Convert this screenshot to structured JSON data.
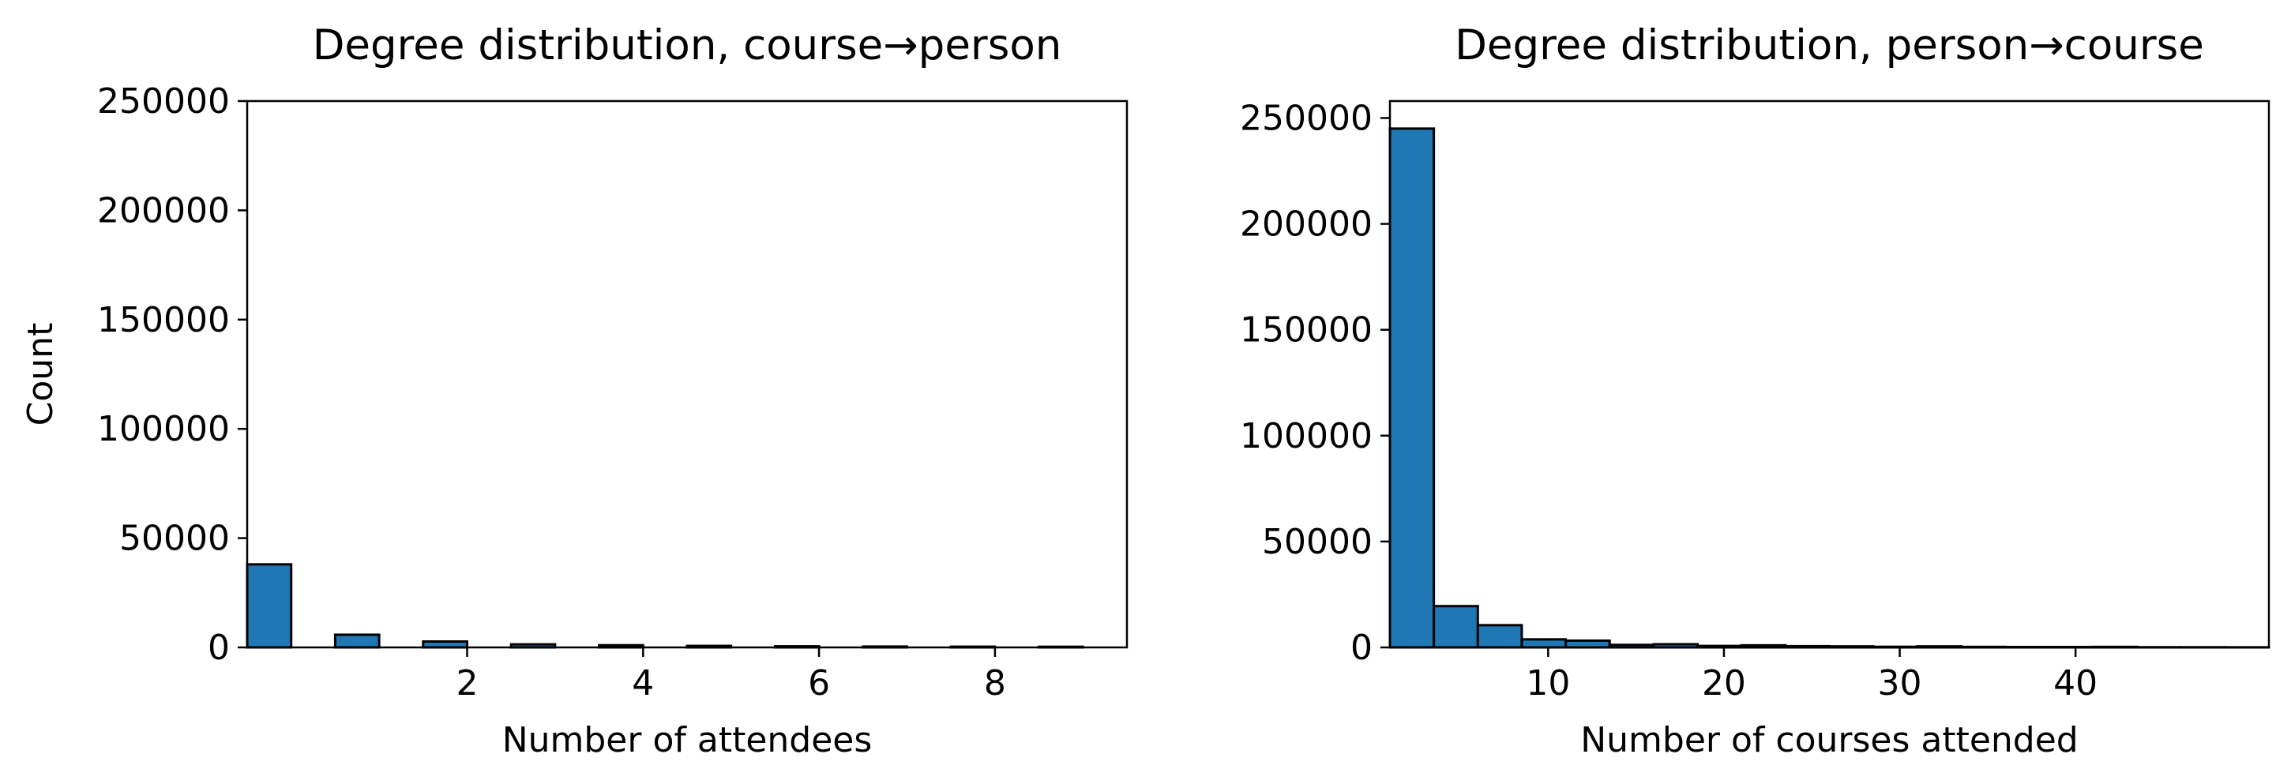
{
  "chart_data": [
    {
      "type": "bar",
      "title": "Degree distribution, course→person",
      "xlabel": "Number of attendees",
      "ylabel": "Count",
      "xlim": [
        -0.5,
        9.5
      ],
      "ylim": [
        0,
        250000
      ],
      "xticks": [
        2,
        4,
        6,
        8
      ],
      "yticks": [
        0,
        50000,
        100000,
        150000,
        200000,
        250000
      ],
      "bin_width": 0.5,
      "bins": [
        {
          "x": -0.5,
          "count": 38000
        },
        {
          "x": 0.5,
          "count": 5800
        },
        {
          "x": 1.5,
          "count": 2700
        },
        {
          "x": 2.5,
          "count": 1400
        },
        {
          "x": 3.5,
          "count": 1000
        },
        {
          "x": 4.5,
          "count": 700
        },
        {
          "x": 5.5,
          "count": 500
        },
        {
          "x": 6.5,
          "count": 400
        },
        {
          "x": 7.5,
          "count": 350
        },
        {
          "x": 8.5,
          "count": 300
        }
      ],
      "color": "#1f77b4",
      "edge_color": "#000000"
    },
    {
      "type": "bar",
      "title": "Degree distribution, person→course",
      "xlabel": "Number of courses attended",
      "ylabel": "",
      "xlim": [
        1,
        51
      ],
      "ylim": [
        0,
        258000
      ],
      "xticks": [
        10,
        20,
        30,
        40
      ],
      "yticks": [
        0,
        50000,
        100000,
        150000,
        200000,
        250000
      ],
      "bin_width": 2.5,
      "bins": [
        {
          "x": 1,
          "count": 245000
        },
        {
          "x": 3.5,
          "count": 19500
        },
        {
          "x": 6,
          "count": 10500
        },
        {
          "x": 8.5,
          "count": 3800
        },
        {
          "x": 11,
          "count": 3200
        },
        {
          "x": 13.5,
          "count": 1200
        },
        {
          "x": 16,
          "count": 1500
        },
        {
          "x": 18.5,
          "count": 700
        },
        {
          "x": 21,
          "count": 1000
        },
        {
          "x": 23.5,
          "count": 600
        },
        {
          "x": 26,
          "count": 500
        },
        {
          "x": 28.5,
          "count": 300
        },
        {
          "x": 31,
          "count": 500
        },
        {
          "x": 33.5,
          "count": 250
        },
        {
          "x": 36,
          "count": 200
        },
        {
          "x": 38.5,
          "count": 200
        },
        {
          "x": 41,
          "count": 250
        },
        {
          "x": 43.5,
          "count": 100
        },
        {
          "x": 46,
          "count": 80
        },
        {
          "x": 48.5,
          "count": 60
        }
      ],
      "color": "#1f77b4",
      "edge_color": "#000000"
    }
  ]
}
